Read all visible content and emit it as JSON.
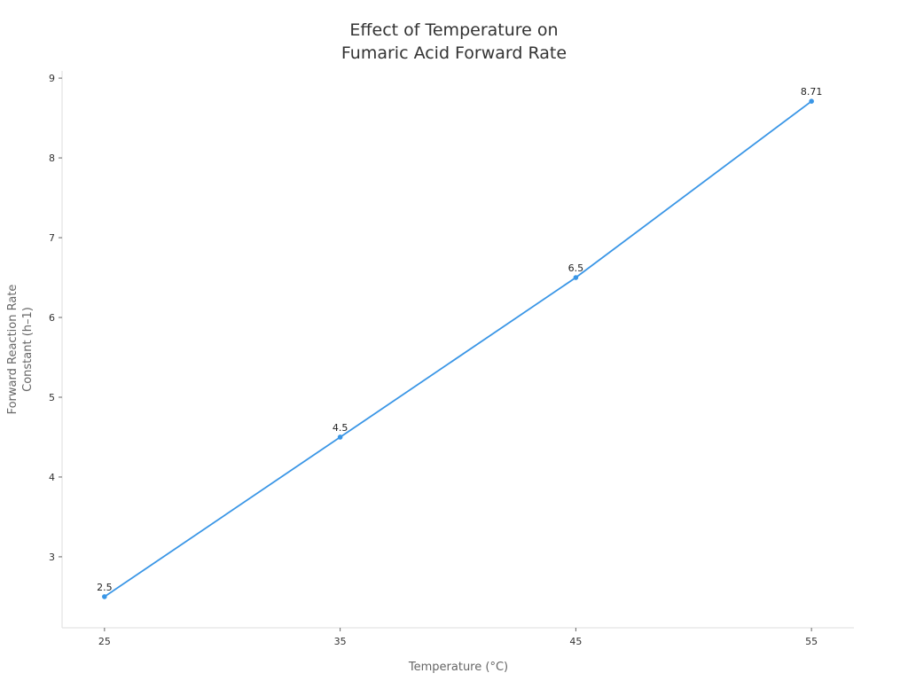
{
  "chart_data": {
    "type": "line",
    "title_lines": [
      "Effect of Temperature on",
      "Fumaric Acid Forward Rate"
    ],
    "xlabel": "Temperature (°C)",
    "ylabel_lines": [
      "Forward Reaction Rate",
      "Constant (h–1)"
    ],
    "x": [
      25,
      35,
      45,
      55
    ],
    "values": [
      2.5,
      4.5,
      6.5,
      8.71
    ],
    "data_labels": [
      "2.5",
      "4.5",
      "6.5",
      "8.71"
    ],
    "x_ticks": [
      25,
      35,
      45,
      55
    ],
    "y_ticks": [
      3,
      4,
      5,
      6,
      7,
      8,
      9
    ],
    "xlim": [
      23.2,
      56.8
    ],
    "ylim": [
      2.11,
      9.09
    ],
    "grid": false,
    "legend": "none",
    "line_color": "#3a96e6"
  }
}
